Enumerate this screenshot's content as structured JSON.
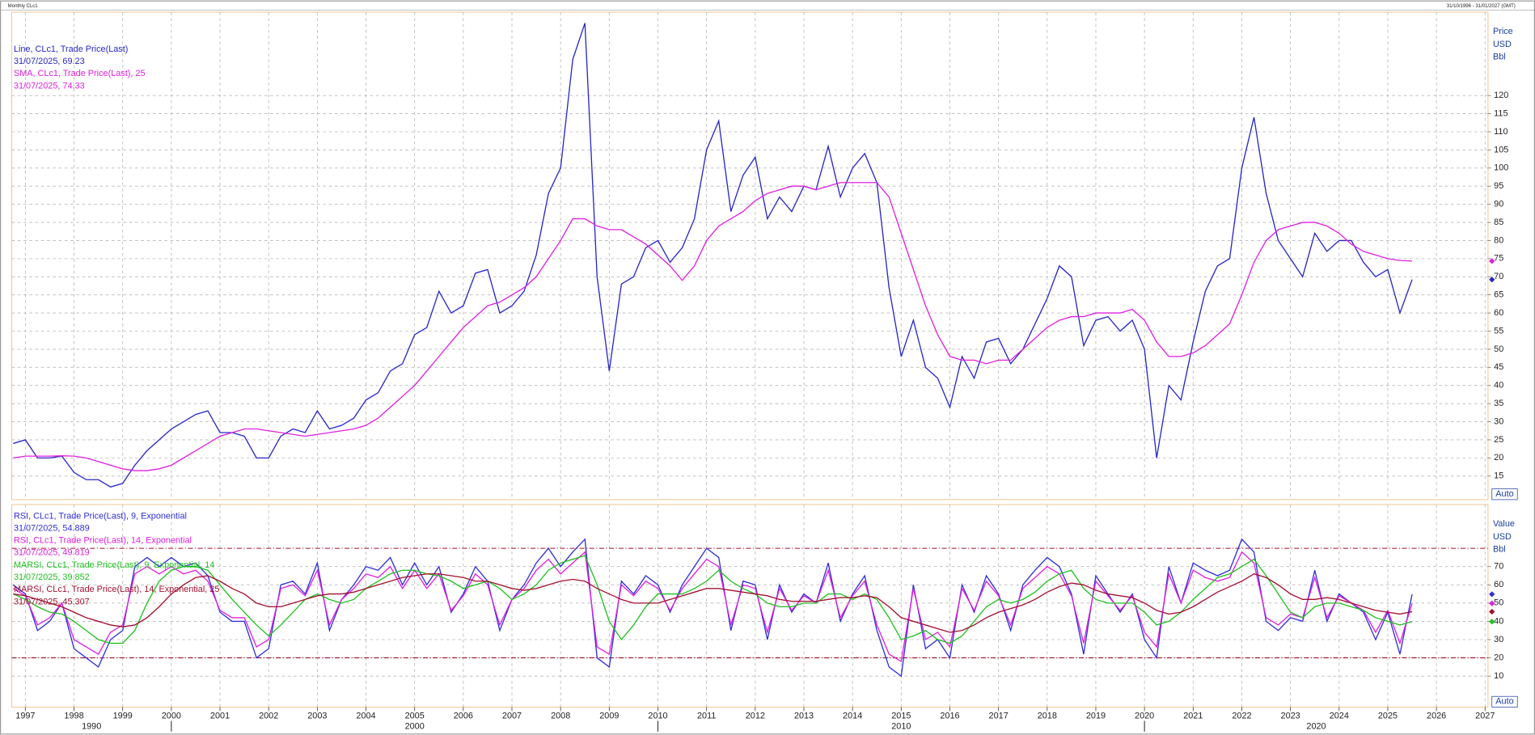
{
  "header": {
    "title": "Monthly CLc1",
    "range": "31/10/1996 - 31/01/2027 (GMT)"
  },
  "chart_data": [
    {
      "type": "line",
      "y_axis_label": [
        "Price",
        "USD",
        "Bbl"
      ],
      "scale_mode": "Auto",
      "xlim": [
        1996.72,
        2027.06
      ],
      "xticks": [
        1997,
        1998,
        1999,
        2000,
        2001,
        2002,
        2003,
        2004,
        2005,
        2006,
        2007,
        2008,
        2009,
        2010,
        2011,
        2012,
        2013,
        2014,
        2015,
        2016,
        2017,
        2018,
        2019,
        2020,
        2021,
        2022,
        2023,
        2024,
        2025,
        2026,
        2027
      ],
      "ylim": [
        8.5,
        143
      ],
      "yticks": [
        15,
        20,
        25,
        30,
        35,
        40,
        45,
        50,
        55,
        60,
        65,
        70,
        75,
        80,
        85,
        90,
        95,
        100,
        105,
        110,
        115,
        120
      ],
      "grid": true,
      "x": [
        1996.75,
        1997,
        1997.25,
        1997.5,
        1997.75,
        1998,
        1998.25,
        1998.5,
        1998.75,
        1999,
        1999.25,
        1999.5,
        1999.75,
        2000,
        2000.25,
        2000.5,
        2000.75,
        2001,
        2001.25,
        2001.5,
        2001.75,
        2002,
        2002.25,
        2002.5,
        2002.75,
        2003,
        2003.25,
        2003.5,
        2003.75,
        2004,
        2004.25,
        2004.5,
        2004.75,
        2005,
        2005.25,
        2005.5,
        2005.75,
        2006,
        2006.25,
        2006.5,
        2006.75,
        2007,
        2007.25,
        2007.5,
        2007.75,
        2008,
        2008.25,
        2008.5,
        2008.75,
        2009,
        2009.25,
        2009.5,
        2009.75,
        2010,
        2010.25,
        2010.5,
        2010.75,
        2011,
        2011.25,
        2011.5,
        2011.75,
        2012,
        2012.25,
        2012.5,
        2012.75,
        2013,
        2013.25,
        2013.5,
        2013.75,
        2014,
        2014.25,
        2014.5,
        2014.75,
        2015,
        2015.25,
        2015.5,
        2015.75,
        2016,
        2016.25,
        2016.5,
        2016.75,
        2017,
        2017.25,
        2017.5,
        2017.75,
        2018,
        2018.25,
        2018.5,
        2018.75,
        2019,
        2019.25,
        2019.5,
        2019.75,
        2020,
        2020.25,
        2020.5,
        2020.75,
        2021,
        2021.25,
        2021.5,
        2021.75,
        2022,
        2022.25,
        2022.5,
        2022.75,
        2023,
        2023.25,
        2023.5,
        2023.75,
        2024,
        2024.25,
        2024.5,
        2024.75,
        2025,
        2025.25,
        2025.5
      ],
      "series": [
        {
          "name": "Line, CLc1, Trade Price(Last)",
          "last_label": "31/07/2025, 69.23",
          "color": "#2828c8",
          "values": [
            24,
            25,
            20,
            20,
            20.5,
            16,
            14,
            14,
            12,
            13,
            18,
            22,
            25,
            28,
            30,
            32,
            33,
            27,
            27,
            26,
            20,
            20,
            26,
            28,
            27,
            33,
            28,
            29,
            31,
            36,
            38,
            44,
            46,
            54,
            56,
            66,
            60,
            62,
            71,
            72,
            60,
            62,
            66,
            76,
            93,
            100,
            130,
            140,
            70,
            44,
            68,
            70,
            78,
            80,
            74,
            78,
            86,
            105,
            113,
            88,
            98,
            103,
            86,
            92,
            88,
            95,
            94,
            106,
            92,
            100,
            104,
            96,
            67,
            48,
            58,
            45,
            42,
            34,
            48,
            42,
            52,
            53,
            46,
            50,
            57,
            64,
            73,
            70,
            51,
            58,
            59,
            55,
            58,
            50,
            20,
            40,
            36,
            52,
            66,
            73,
            75,
            100,
            114,
            93,
            80,
            75,
            70,
            82,
            77,
            80,
            80,
            74,
            70,
            72,
            60,
            69.23
          ]
        },
        {
          "name": "SMA, CLc1, Trade Price(Last),  25",
          "last_label": "31/07/2025, 74.33",
          "color": "#e020e0",
          "values": [
            20,
            20.5,
            20.5,
            20.5,
            20.6,
            20.5,
            20,
            19,
            18,
            17,
            16.5,
            16.5,
            17,
            18,
            20,
            22,
            24,
            26,
            27,
            28,
            28,
            27.5,
            27,
            26.5,
            26,
            26.5,
            27,
            27.5,
            28,
            29,
            31,
            34,
            37,
            40,
            44,
            48,
            52,
            56,
            59,
            62,
            63,
            65,
            67,
            70,
            75,
            80,
            86,
            86,
            84,
            83,
            83,
            81,
            79,
            76,
            73,
            69,
            73,
            80,
            84,
            86,
            88,
            91,
            93,
            94,
            95,
            95,
            94,
            95,
            96,
            96,
            96,
            96,
            92,
            82,
            72,
            62,
            54,
            48,
            47,
            47,
            46,
            47,
            47,
            50,
            53,
            56,
            58,
            59,
            59,
            60,
            60,
            60,
            61,
            58,
            52,
            48,
            48,
            49,
            51,
            54,
            57,
            65,
            74,
            80,
            83,
            84,
            85,
            85,
            84,
            82,
            79,
            77,
            76,
            75,
            74.5,
            74.33
          ]
        }
      ]
    },
    {
      "type": "line",
      "y_axis_label": [
        "Value",
        "USD",
        "Bbl"
      ],
      "scale_mode": "Auto",
      "xlim": [
        1996.72,
        2027.06
      ],
      "xticks": [
        1997,
        1998,
        1999,
        2000,
        2001,
        2002,
        2003,
        2004,
        2005,
        2006,
        2007,
        2008,
        2009,
        2010,
        2011,
        2012,
        2013,
        2014,
        2015,
        2016,
        2017,
        2018,
        2019,
        2020,
        2021,
        2022,
        2023,
        2024,
        2025,
        2026,
        2027
      ],
      "decade_ticks": [
        1990,
        2000,
        2010,
        2020
      ],
      "ylim": [
        -7,
        104
      ],
      "yticks": [
        10,
        20,
        30,
        40,
        50,
        60,
        70
      ],
      "ref_lines": [
        20,
        80
      ],
      "ref_color": "#a01030",
      "grid": true,
      "x": [
        1996.75,
        1997,
        1997.25,
        1997.5,
        1997.75,
        1998,
        1998.25,
        1998.5,
        1998.75,
        1999,
        1999.25,
        1999.5,
        1999.75,
        2000,
        2000.25,
        2000.5,
        2000.75,
        2001,
        2001.25,
        2001.5,
        2001.75,
        2002,
        2002.25,
        2002.5,
        2002.75,
        2003,
        2003.25,
        2003.5,
        2003.75,
        2004,
        2004.25,
        2004.5,
        2004.75,
        2005,
        2005.25,
        2005.5,
        2005.75,
        2006,
        2006.25,
        2006.5,
        2006.75,
        2007,
        2007.25,
        2007.5,
        2007.75,
        2008,
        2008.25,
        2008.5,
        2008.75,
        2009,
        2009.25,
        2009.5,
        2009.75,
        2010,
        2010.25,
        2010.5,
        2010.75,
        2011,
        2011.25,
        2011.5,
        2011.75,
        2012,
        2012.25,
        2012.5,
        2012.75,
        2013,
        2013.25,
        2013.5,
        2013.75,
        2014,
        2014.25,
        2014.5,
        2014.75,
        2015,
        2015.25,
        2015.5,
        2015.75,
        2016,
        2016.25,
        2016.5,
        2016.75,
        2017,
        2017.25,
        2017.5,
        2017.75,
        2018,
        2018.25,
        2018.5,
        2018.75,
        2019,
        2019.25,
        2019.5,
        2019.75,
        2020,
        2020.25,
        2020.5,
        2020.75,
        2021,
        2021.25,
        2021.5,
        2021.75,
        2022,
        2022.25,
        2022.5,
        2022.75,
        2023,
        2023.25,
        2023.5,
        2023.75,
        2024,
        2024.25,
        2024.5,
        2024.75,
        2025,
        2025.25,
        2025.5
      ],
      "series": [
        {
          "name": "RSI, CLc1, Trade Price(Last),  9, Exponential",
          "last_label": "31/07/2025, 54.889",
          "color": "#3030d8",
          "values": [
            60,
            55,
            35,
            40,
            50,
            25,
            20,
            15,
            30,
            35,
            70,
            75,
            70,
            75,
            70,
            72,
            65,
            45,
            40,
            40,
            20,
            25,
            60,
            62,
            55,
            72,
            35,
            52,
            60,
            70,
            68,
            75,
            60,
            72,
            60,
            70,
            45,
            55,
            70,
            62,
            35,
            52,
            60,
            72,
            80,
            70,
            78,
            85,
            20,
            15,
            62,
            55,
            65,
            60,
            45,
            60,
            70,
            80,
            75,
            35,
            62,
            60,
            30,
            60,
            45,
            55,
            50,
            72,
            40,
            55,
            65,
            35,
            15,
            10,
            60,
            25,
            30,
            20,
            60,
            45,
            65,
            55,
            35,
            60,
            68,
            75,
            70,
            55,
            22,
            65,
            55,
            45,
            55,
            30,
            20,
            70,
            50,
            72,
            68,
            65,
            68,
            85,
            78,
            40,
            35,
            42,
            40,
            68,
            40,
            55,
            50,
            45,
            30,
            45,
            22,
            54.889
          ]
        },
        {
          "name": "RSI, CLc1, Trade Price(Last),  14, Exponential",
          "last_label": "31/07/2025, 49.819",
          "color": "#e020e0",
          "values": [
            58,
            54,
            38,
            42,
            50,
            30,
            26,
            22,
            34,
            38,
            66,
            70,
            66,
            70,
            66,
            68,
            62,
            46,
            42,
            42,
            26,
            30,
            58,
            60,
            54,
            68,
            38,
            52,
            58,
            66,
            64,
            70,
            58,
            68,
            58,
            66,
            46,
            54,
            66,
            60,
            38,
            52,
            58,
            68,
            74,
            66,
            72,
            78,
            26,
            22,
            60,
            54,
            62,
            58,
            46,
            58,
            66,
            74,
            70,
            38,
            60,
            58,
            34,
            58,
            46,
            54,
            50,
            68,
            42,
            54,
            62,
            38,
            22,
            18,
            58,
            30,
            34,
            26,
            58,
            46,
            62,
            54,
            38,
            58,
            64,
            70,
            66,
            54,
            28,
            62,
            54,
            46,
            54,
            34,
            26,
            66,
            50,
            68,
            64,
            62,
            64,
            78,
            72,
            42,
            38,
            44,
            42,
            64,
            42,
            54,
            50,
            46,
            34,
            46,
            28,
            49.819
          ]
        },
        {
          "name": "MARSI, CLc1, Trade Price(Last),  9, Exponential, 14",
          "last_label": "31/07/2025, 39.852",
          "color": "#20c020",
          "values": [
            55,
            52,
            48,
            45,
            44,
            40,
            35,
            30,
            28,
            28,
            35,
            50,
            62,
            68,
            70,
            70,
            68,
            60,
            52,
            45,
            38,
            32,
            38,
            45,
            52,
            55,
            52,
            50,
            52,
            58,
            62,
            66,
            68,
            68,
            66,
            65,
            62,
            58,
            60,
            62,
            58,
            52,
            55,
            60,
            68,
            72,
            74,
            76,
            60,
            40,
            30,
            38,
            48,
            55,
            55,
            55,
            58,
            62,
            68,
            62,
            58,
            55,
            50,
            48,
            48,
            50,
            50,
            55,
            55,
            52,
            55,
            52,
            42,
            30,
            32,
            35,
            30,
            28,
            32,
            40,
            48,
            52,
            50,
            52,
            56,
            62,
            66,
            68,
            58,
            52,
            50,
            50,
            50,
            45,
            38,
            40,
            45,
            52,
            58,
            64,
            66,
            70,
            74,
            65,
            55,
            45,
            42,
            48,
            50,
            50,
            48,
            46,
            42,
            40,
            38,
            39.852
          ]
        },
        {
          "name": "MARSI, CLc1, Trade Price(Last),  14, Exponential, 25",
          "last_label": "31/07/2025, 45.307",
          "color": "#a01030",
          "values": [
            55,
            54,
            52,
            50,
            48,
            45,
            42,
            40,
            38,
            37,
            38,
            42,
            48,
            55,
            60,
            64,
            65,
            62,
            58,
            55,
            50,
            48,
            48,
            50,
            52,
            54,
            55,
            55,
            56,
            58,
            60,
            62,
            64,
            65,
            66,
            66,
            65,
            64,
            62,
            62,
            60,
            58,
            57,
            58,
            60,
            62,
            63,
            62,
            58,
            55,
            52,
            50,
            50,
            50,
            52,
            54,
            56,
            58,
            58,
            57,
            56,
            55,
            54,
            52,
            51,
            51,
            51,
            52,
            53,
            53,
            54,
            53,
            48,
            42,
            40,
            38,
            36,
            34,
            35,
            38,
            42,
            45,
            47,
            49,
            52,
            56,
            59,
            61,
            60,
            57,
            55,
            54,
            53,
            50,
            46,
            44,
            45,
            48,
            52,
            56,
            59,
            62,
            66,
            64,
            60,
            55,
            52,
            52,
            53,
            52,
            50,
            48,
            46,
            45,
            44,
            45.307
          ]
        }
      ]
    }
  ]
}
